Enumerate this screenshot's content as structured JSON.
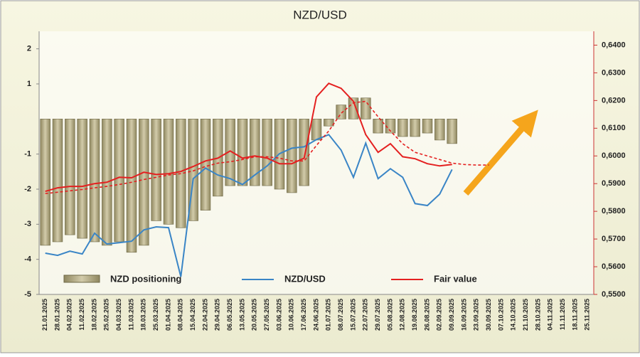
{
  "chart_data": {
    "type": "combo",
    "title": "NZD/USD",
    "categories": [
      "21.01.2025",
      "28.01.2025",
      "04.02.2025",
      "11.02.2025",
      "18.02.2025",
      "25.02.2025",
      "04.03.2025",
      "11.03.2025",
      "18.03.2025",
      "25.03.2025",
      "01.04.2025",
      "08.04.2025",
      "15.04.2025",
      "22.04.2025",
      "29.04.2025",
      "06.05.2025",
      "13.05.2025",
      "20.05.2025",
      "27.05.2025",
      "03.06.2025",
      "10.06.2025",
      "17.06.2025",
      "24.06.2025",
      "01.07.2025",
      "08.07.2025",
      "15.07.2025",
      "22.07.2025",
      "29.07.2025",
      "05.08.2025",
      "12.08.2025",
      "19.08.2025",
      "26.08.2025",
      "02.09.2025",
      "09.09.2025",
      "16.09.2025",
      "23.09.2025",
      "30.09.2025",
      "07.10.2025",
      "14.10.2025",
      "21.10.2025",
      "28.10.2025",
      "04.11.2025",
      "11.11.2025",
      "18.11.2025",
      "25.11.2025"
    ],
    "series": [
      {
        "name": "NZD positioning",
        "type": "bar",
        "color": "#b8b08a",
        "values": [
          -3.6,
          -3.5,
          -3.3,
          -3.4,
          -3.5,
          -3.6,
          -3.5,
          -3.8,
          -3.6,
          -2.9,
          -3.0,
          -3.1,
          -2.9,
          -2.6,
          -2.2,
          -1.9,
          -1.9,
          -1.9,
          -1.9,
          -2.0,
          -2.1,
          -1.9,
          -0.6,
          -0.2,
          0.4,
          0.6,
          0.6,
          -0.4,
          -0.4,
          -0.5,
          -0.5,
          -0.4,
          -0.6,
          -0.7,
          null,
          null,
          null,
          null,
          null,
          null,
          null,
          null,
          null,
          null,
          null
        ]
      },
      {
        "name": "NZD/USD",
        "type": "line",
        "axis": "y2",
        "color": "#3a85c6",
        "values": [
          0.5649,
          0.5641,
          0.5656,
          0.5646,
          0.5721,
          0.5682,
          0.5687,
          0.5692,
          0.5733,
          0.5744,
          0.5741,
          0.5564,
          0.5918,
          0.5956,
          0.5931,
          0.5918,
          0.5897,
          0.5931,
          0.5964,
          0.6008,
          0.6028,
          0.6033,
          0.6059,
          0.6077,
          0.6021,
          0.5923,
          0.6046,
          0.5918,
          0.5954,
          0.5923,
          0.5828,
          0.5821,
          0.5862,
          0.5951,
          null,
          null,
          null,
          null,
          null,
          null,
          null,
          null,
          null,
          null,
          null
        ]
      },
      {
        "name": "Fair value",
        "type": "line",
        "axis": "y2",
        "color": "#e42020",
        "values": [
          0.5872,
          0.5885,
          0.589,
          0.589,
          0.59,
          0.5905,
          0.5923,
          0.5921,
          0.5941,
          0.5933,
          0.5936,
          0.5944,
          0.5962,
          0.5982,
          0.5992,
          0.6018,
          0.5992,
          0.6,
          0.5992,
          0.5972,
          0.5972,
          0.5992,
          0.6213,
          0.6262,
          0.6244,
          0.6197,
          0.6077,
          0.6013,
          0.6044,
          0.5997,
          0.599,
          0.5972,
          0.5964,
          0.5969,
          null,
          null,
          null,
          null,
          null,
          null,
          null,
          null,
          null,
          null,
          null
        ]
      },
      {
        "type": "line",
        "axis": "y2",
        "color": "#e42020",
        "dashed": true,
        "values": [
          0.5864,
          0.5869,
          0.5874,
          0.5879,
          0.5885,
          0.589,
          0.5897,
          0.5905,
          0.5915,
          0.5923,
          0.5931,
          0.5936,
          0.5946,
          0.5962,
          0.5974,
          0.5979,
          0.5987,
          0.5997,
          0.5997,
          0.5992,
          0.5982,
          0.5982,
          0.6038,
          0.609,
          0.6154,
          0.6192,
          0.6197,
          0.6141,
          0.609,
          0.6044,
          0.6013,
          0.6,
          0.5987,
          0.5974,
          0.5969,
          0.5967,
          0.5967,
          null,
          null,
          null,
          null,
          null,
          null,
          null,
          null
        ]
      }
    ],
    "ylim": [
      -5,
      2.5
    ],
    "yticks": [
      2,
      1,
      -1,
      -2,
      -3,
      -4,
      -5
    ],
    "y2lim": [
      0.55,
      0.645
    ],
    "y2ticks": [
      {
        "value": 0.64,
        "label": "0,6400"
      },
      {
        "value": 0.63,
        "label": "0,6300"
      },
      {
        "value": 0.62,
        "label": "0,6200"
      },
      {
        "value": 0.61,
        "label": "0,6100"
      },
      {
        "value": 0.6,
        "label": "0,6000"
      },
      {
        "value": 0.59,
        "label": "0,5900"
      },
      {
        "value": 0.58,
        "label": "0,5800"
      },
      {
        "value": 0.57,
        "label": "0,5700"
      },
      {
        "value": 0.56,
        "label": "0,5600"
      },
      {
        "value": 0.55,
        "label": "0,5500"
      }
    ]
  }
}
